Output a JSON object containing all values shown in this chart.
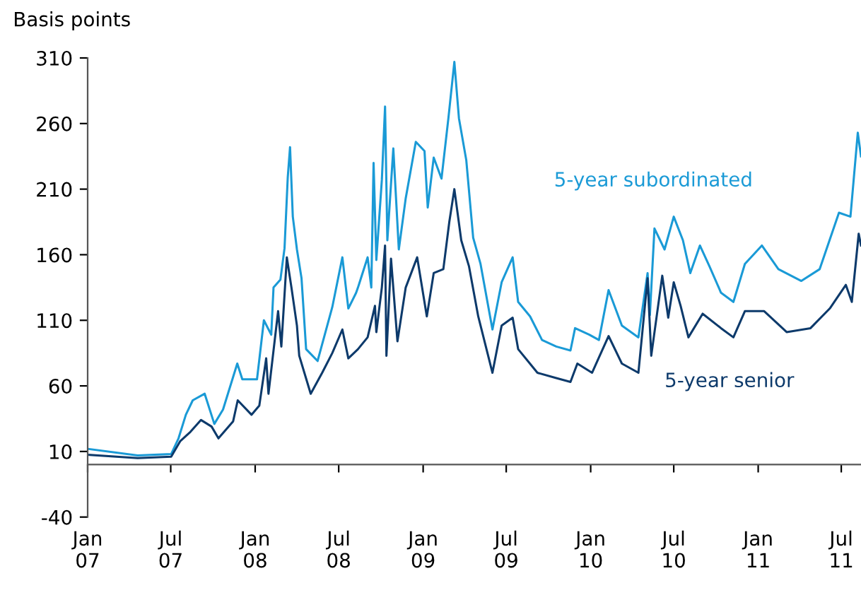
{
  "chart_data": {
    "type": "line",
    "ylabel": "Basis points",
    "series": [
      {
        "name": "5-year subordinated",
        "color": "#1a9ad6",
        "x": [
          "2007-01-01",
          "2007-04-20",
          "2007-07-02",
          "2007-07-18",
          "2007-08-03",
          "2007-08-18",
          "2007-09-13",
          "2007-10-04",
          "2007-10-23",
          "2007-11-23",
          "2007-12-04",
          "2008-01-05",
          "2008-01-20",
          "2008-02-05",
          "2008-02-10",
          "2008-02-25",
          "2008-03-05",
          "2008-03-12",
          "2008-03-17",
          "2008-03-23",
          "2008-04-01",
          "2008-04-11",
          "2008-04-21",
          "2008-05-16",
          "2008-06-17",
          "2008-07-09",
          "2008-07-22",
          "2008-08-08",
          "2008-08-12",
          "2008-09-02",
          "2008-09-10",
          "2008-09-15",
          "2008-09-21",
          "2008-10-03",
          "2008-10-10",
          "2008-10-15",
          "2008-10-28",
          "2008-11-09",
          "2008-11-24",
          "2008-12-16",
          "2009-01-04",
          "2009-01-11",
          "2009-01-24",
          "2009-02-10",
          "2009-02-25",
          "2009-03-10",
          "2009-03-20",
          "2009-04-05",
          "2009-04-20",
          "2009-05-06",
          "2009-06-01",
          "2009-06-21",
          "2009-07-15",
          "2009-07-27",
          "2009-08-22",
          "2009-09-17",
          "2009-10-18",
          "2009-11-18",
          "2009-11-28",
          "2009-12-29",
          "2010-01-19",
          "2010-02-09",
          "2010-03-10",
          "2010-04-15",
          "2010-05-05",
          "2010-05-10",
          "2010-05-20",
          "2010-06-11",
          "2010-07-01",
          "2010-07-21",
          "2010-08-06",
          "2010-08-27",
          "2010-09-17",
          "2010-10-12",
          "2010-11-08",
          "2010-12-03",
          "2011-01-09",
          "2011-02-14",
          "2011-04-05",
          "2011-05-15",
          "2011-06-26",
          "2011-07-21",
          "2011-08-06",
          "2011-08-13"
        ],
        "values": [
          12,
          7,
          8,
          20,
          38,
          49,
          54,
          31,
          42,
          77,
          65,
          65,
          110,
          99,
          135,
          141,
          165,
          219,
          242,
          189,
          164,
          142,
          88,
          79,
          120,
          158,
          119,
          131,
          135,
          158,
          135,
          230,
          156,
          217,
          273,
          171,
          241,
          164,
          203,
          246,
          239,
          196,
          234,
          218,
          264,
          307,
          264,
          232,
          173,
          153,
          103,
          139,
          158,
          124,
          113,
          95,
          90,
          87,
          104,
          99,
          95,
          133,
          106,
          97,
          146,
          114,
          180,
          164,
          189,
          171,
          146,
          167,
          151,
          131,
          124,
          153,
          167,
          149,
          140,
          149,
          192,
          189,
          253,
          235
        ]
      },
      {
        "name": "5-year senior",
        "color": "#0d3a6b",
        "x": [
          "2007-01-01",
          "2007-04-20",
          "2007-07-02",
          "2007-07-22",
          "2007-08-13",
          "2007-09-05",
          "2007-09-28",
          "2007-10-13",
          "2007-11-14",
          "2007-11-24",
          "2007-12-24",
          "2008-01-10",
          "2008-01-25",
          "2008-01-30",
          "2008-02-20",
          "2008-02-27",
          "2008-03-10",
          "2008-03-20",
          "2008-04-01",
          "2008-04-06",
          "2008-05-01",
          "2008-05-26",
          "2008-06-17",
          "2008-07-09",
          "2008-07-22",
          "2008-08-12",
          "2008-09-02",
          "2008-09-18",
          "2008-09-21",
          "2008-10-03",
          "2008-10-10",
          "2008-10-13",
          "2008-10-23",
          "2008-11-06",
          "2008-11-24",
          "2008-12-19",
          "2009-01-09",
          "2009-01-24",
          "2009-02-14",
          "2009-02-27",
          "2009-03-10",
          "2009-03-25",
          "2009-04-11",
          "2009-05-01",
          "2009-06-01",
          "2009-06-21",
          "2009-07-15",
          "2009-07-27",
          "2009-09-07",
          "2009-10-18",
          "2009-11-18",
          "2009-12-03",
          "2010-01-04",
          "2010-02-09",
          "2010-03-10",
          "2010-04-15",
          "2010-05-05",
          "2010-05-13",
          "2010-06-06",
          "2010-06-19",
          "2010-07-01",
          "2010-07-16",
          "2010-08-02",
          "2010-09-02",
          "2010-10-12",
          "2010-11-08",
          "2010-12-03",
          "2011-01-14",
          "2011-03-04",
          "2011-04-25",
          "2011-06-06",
          "2011-07-11",
          "2011-07-24",
          "2011-08-08",
          "2011-08-13"
        ],
        "values": [
          7.5,
          5,
          6,
          18,
          25,
          34,
          29,
          20,
          33,
          49,
          38,
          45,
          81,
          54,
          117,
          90,
          158,
          135,
          106,
          83,
          54,
          70,
          85,
          103,
          81,
          88,
          97,
          121,
          101,
          135,
          167,
          83,
          157,
          94,
          135,
          158,
          113,
          146,
          149,
          185,
          210,
          171,
          151,
          113,
          70,
          106,
          112,
          88,
          70,
          66,
          63,
          77,
          70,
          98,
          77,
          70,
          142,
          83,
          144,
          112,
          139,
          121,
          97,
          115,
          104,
          97,
          117,
          117,
          101,
          104,
          119,
          137,
          124,
          176,
          167
        ]
      }
    ],
    "xlim": [
      "2007-01-01",
      "2011-08-13"
    ],
    "xticks": [
      {
        "value": "2007-01-01",
        "label": "Jan\n07"
      },
      {
        "value": "2007-07-01",
        "label": "Jul\n07"
      },
      {
        "value": "2008-01-01",
        "label": "Jan\n08"
      },
      {
        "value": "2008-07-01",
        "label": "Jul\n08"
      },
      {
        "value": "2009-01-01",
        "label": "Jan\n09"
      },
      {
        "value": "2009-07-01",
        "label": "Jul\n09"
      },
      {
        "value": "2010-01-01",
        "label": "Jan\n10"
      },
      {
        "value": "2010-07-01",
        "label": "Jul\n10"
      },
      {
        "value": "2011-01-01",
        "label": "Jan\n11"
      },
      {
        "value": "2011-07-01",
        "label": "Jul\n11"
      }
    ],
    "ylim": [
      -40,
      310
    ],
    "yticks": [
      -40,
      10,
      60,
      110,
      160,
      210,
      260,
      310
    ],
    "grid": false,
    "legend": false,
    "marker": "none",
    "line_style": "solid"
  }
}
